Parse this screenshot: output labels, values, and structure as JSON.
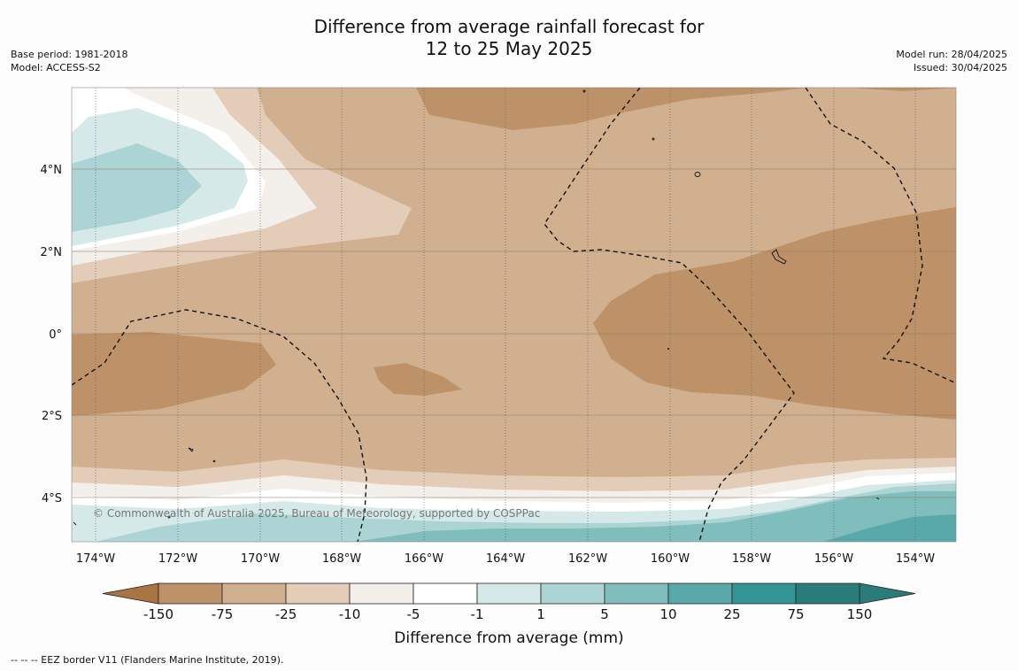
{
  "title": {
    "line1": "Difference from average rainfall forecast for",
    "line2": "12 to 25 May 2025"
  },
  "meta_left": {
    "base_period": "Base period: 1981-2018",
    "model": "Model: ACCESS-S2"
  },
  "meta_right": {
    "model_run": "Model run: 28/04/2025",
    "issued": "Issued: 30/04/2025"
  },
  "map": {
    "lon_labels": [
      "174°W",
      "172°W",
      "170°W",
      "168°W",
      "166°W",
      "164°W",
      "162°W",
      "160°W",
      "158°W",
      "156°W",
      "154°W"
    ],
    "lat_labels": [
      "4°N",
      "2°N",
      "0°",
      "2°S",
      "4°S"
    ],
    "copyright": "© Commonwealth of Australia 2025, Bureau of Meteorology, supported by COSPPac"
  },
  "colorbar": {
    "ticks": [
      "-150",
      "-75",
      "-25",
      "-10",
      "-5",
      "-1",
      "1",
      "5",
      "10",
      "25",
      "75",
      "150"
    ],
    "colors": [
      "#a87440",
      "#be9268",
      "#d1b08f",
      "#e3cdb9",
      "#f3efea",
      "#ffffff",
      "#d5e9e8",
      "#acd4d4",
      "#80bebd",
      "#59a9aa",
      "#339596",
      "#2a7c7a"
    ],
    "label": "Difference from average (mm)"
  },
  "footer": {
    "eez_note": "--  --  -- EEZ border V11 (Flanders Marine Institute, 2019)."
  }
}
